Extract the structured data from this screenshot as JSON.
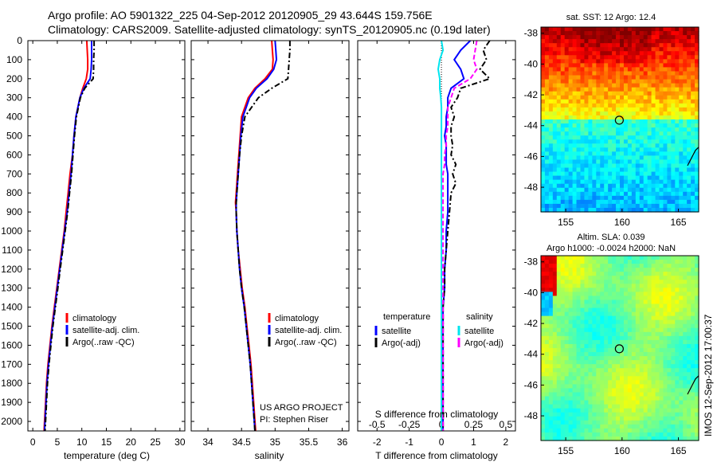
{
  "header": {
    "line1": "Argo profile: AO 5901322_225 04-Sep-2012 20120905_29 43.644S 159.756E",
    "line2": "Climatology: CARS2009. Satellite-adjusted climatology: synTS_20120905.nc (0.19d later)"
  },
  "side_label": "IMOS 12-Sep-2012 17:00:37",
  "colors": {
    "climatology": "#ff0000",
    "satellite": "#0000ff",
    "argo": "#000000",
    "sal_satellite": "#00e5ee",
    "sal_argo": "#ff00ff",
    "float_marker": "#000000"
  },
  "chart_data": [
    {
      "type": "line",
      "panel": "temperature",
      "xlabel": "temperature (deg C)",
      "ylabel": "",
      "xlim": [
        -1,
        31
      ],
      "ylim": [
        2050,
        0
      ],
      "xticks": [
        0,
        5,
        10,
        15,
        20,
        25,
        30
      ],
      "yticks": [
        0,
        100,
        200,
        300,
        400,
        500,
        600,
        700,
        800,
        900,
        1000,
        1100,
        1200,
        1300,
        1400,
        1500,
        1600,
        1700,
        1800,
        1900,
        2000
      ],
      "y": [
        0,
        50,
        100,
        150,
        200,
        250,
        300,
        400,
        500,
        600,
        700,
        800,
        900,
        1000,
        1100,
        1200,
        1300,
        1400,
        1500,
        1600,
        1700,
        1800,
        1900,
        2000,
        2050
      ],
      "series": [
        {
          "name": "climatology",
          "style": "solid",
          "color": "#ff0000",
          "values": [
            11.0,
            11.1,
            11.2,
            11.2,
            10.9,
            10.2,
            9.6,
            8.8,
            8.4,
            8.1,
            7.6,
            7.2,
            6.8,
            6.4,
            5.9,
            5.4,
            4.9,
            4.4,
            3.9,
            3.5,
            3.1,
            2.8,
            2.6,
            2.4,
            2.3
          ]
        },
        {
          "name": "satellite-adj. clim.",
          "style": "solid",
          "color": "#0000ff",
          "values": [
            12.0,
            12.0,
            12.0,
            11.9,
            11.7,
            10.4,
            9.6,
            8.8,
            8.4,
            8.1,
            7.8,
            7.4,
            7.0,
            6.5,
            6.0,
            5.5,
            5.0,
            4.5,
            4.0,
            3.6,
            3.2,
            2.9,
            2.7,
            2.5,
            2.4
          ]
        },
        {
          "name": "Argo(..raw -QC)",
          "style": "dashdot",
          "color": "#000000",
          "values": [
            12.5,
            12.5,
            12.4,
            12.4,
            12.3,
            10.6,
            9.7,
            8.9,
            8.5,
            8.2,
            7.9,
            7.5,
            7.1,
            6.6,
            6.1,
            5.6,
            5.1,
            4.6,
            4.1,
            3.7,
            3.3,
            3.0,
            2.8,
            2.6,
            2.5
          ]
        }
      ],
      "legend": {
        "position": "lower-right",
        "entries": [
          "climatology",
          "satellite-adj. clim.",
          "Argo(..raw -QC)"
        ]
      }
    },
    {
      "type": "line",
      "panel": "salinity",
      "xlabel": "salinity",
      "xlim": [
        33.75,
        36.1
      ],
      "ylim": [
        2050,
        0
      ],
      "xticks": [
        34,
        34.5,
        35,
        35.5,
        36
      ],
      "xtick_labels": [
        "34",
        "34.5",
        "35",
        "35.5",
        "36"
      ],
      "y": [
        0,
        50,
        100,
        150,
        200,
        250,
        300,
        400,
        500,
        600,
        700,
        800,
        850,
        900,
        1000,
        1100,
        1200,
        1300,
        1400,
        1500,
        1600,
        1700,
        1800,
        1900,
        2000,
        2050
      ],
      "series": [
        {
          "name": "climatology",
          "style": "solid",
          "color": "#ff0000",
          "values": [
            34.95,
            34.96,
            34.97,
            34.96,
            34.85,
            34.7,
            34.6,
            34.5,
            34.48,
            34.46,
            34.44,
            34.42,
            34.41,
            34.42,
            34.43,
            34.45,
            34.48,
            34.51,
            34.55,
            34.58,
            34.61,
            34.64,
            34.66,
            34.68,
            34.7,
            34.71
          ]
        },
        {
          "name": "satellite-adj. clim.",
          "style": "solid",
          "color": "#0000ff",
          "values": [
            35.0,
            35.01,
            35.02,
            34.98,
            34.88,
            34.72,
            34.62,
            34.52,
            34.49,
            34.47,
            34.45,
            34.43,
            34.42,
            34.42,
            34.43,
            34.45,
            34.47,
            34.5,
            34.54,
            34.57,
            34.6,
            34.63,
            34.65,
            34.67,
            34.69,
            34.7
          ]
        },
        {
          "name": "Argo(..raw -QC)",
          "style": "dashdot",
          "color": "#000000",
          "values": [
            35.22,
            35.22,
            35.21,
            35.2,
            35.19,
            34.95,
            34.75,
            34.55,
            34.5,
            34.47,
            34.45,
            34.43,
            34.42,
            34.42,
            34.43,
            34.45,
            34.47,
            34.5,
            34.54,
            34.57,
            34.6,
            34.63,
            34.65,
            34.67,
            34.69,
            34.7
          ]
        }
      ],
      "legend": {
        "position": "lower-right",
        "entries": [
          "climatology",
          "satellite-adj. clim.",
          "Argo(..raw -QC)"
        ]
      },
      "annotation": [
        "US ARGO PROJECT",
        "PI: Stephen Riser"
      ]
    },
    {
      "type": "line",
      "panel": "differences",
      "xlabel": "T difference from climatology",
      "xlabel_top": "S difference from climatology",
      "xlim": [
        -2.6,
        2.3
      ],
      "ylim": [
        2050,
        0
      ],
      "xticks_T": [
        -2,
        -1,
        0,
        1,
        2
      ],
      "xticks_S": [
        "-0.5",
        "-0.25",
        "0",
        "0.25",
        "0.5"
      ],
      "y": [
        0,
        50,
        100,
        150,
        200,
        250,
        300,
        350,
        400,
        450,
        500,
        550,
        600,
        650,
        700,
        750,
        800,
        900,
        1000,
        1100,
        1200,
        1300,
        1400,
        1500,
        1600,
        1700,
        1800,
        1900,
        2000,
        2050
      ],
      "series": [
        {
          "name": "temperature satellite",
          "style": "solid",
          "color": "#0000ff",
          "values": [
            0.9,
            0.6,
            0.4,
            0.6,
            0.7,
            0.3,
            0.2,
            0.2,
            0.15,
            0.15,
            0.1,
            0.15,
            0.15,
            0.15,
            0.2,
            0.2,
            0.2,
            0.2,
            0.15,
            0.15,
            0.1,
            0.1,
            0.05,
            0.05,
            0.05,
            0.05,
            0.05,
            0.05,
            0.05,
            0.05
          ]
        },
        {
          "name": "temperature Argo(-adj)",
          "style": "dashdot",
          "color": "#000000",
          "values": [
            1.5,
            1.3,
            1.4,
            1.2,
            1.5,
            0.6,
            0.5,
            0.3,
            0.4,
            0.3,
            0.3,
            0.35,
            0.3,
            0.45,
            0.35,
            0.45,
            0.3,
            0.25,
            0.2,
            0.15,
            0.1,
            0.1,
            0.05,
            0.05,
            0.05,
            0.05,
            0.05,
            0.05,
            0.05,
            0.05
          ]
        },
        {
          "name": "salinity satellite",
          "style": "solid",
          "color": "#00e5ee",
          "values": [
            0.0,
            0.05,
            -0.05,
            -0.1,
            -0.05,
            -0.05,
            -0.02,
            0.0,
            0.0,
            0.0,
            0.0,
            0.0,
            0.0,
            0.0,
            0.0,
            0.0,
            0.0,
            0.0,
            0.0,
            0.0,
            0.0,
            0.0,
            0.0,
            0.0,
            0.0,
            0.0,
            0.0,
            0.0,
            0.0,
            0.0
          ]
        },
        {
          "name": "salinity Argo(-adj)",
          "style": "dashed",
          "color": "#ff00ff",
          "values": [
            1.1,
            1.05,
            1.0,
            1.1,
            0.9,
            0.4,
            0.3,
            0.2,
            0.2,
            0.2,
            0.15,
            0.15,
            0.1,
            0.1,
            0.05,
            0.05,
            0.05,
            0.05,
            0.05,
            0.05,
            0.05,
            0.05,
            0.05,
            0.05,
            0.05,
            0.05,
            0.05,
            0.05,
            0.05,
            0.05
          ]
        }
      ],
      "legend": {
        "columns": [
          {
            "header": "temperature",
            "entries": [
              {
                "label": "satellite",
                "color": "#0000ff"
              },
              {
                "label": "Argo(-adj)",
                "color": "#000000"
              }
            ]
          },
          {
            "header": "salinity",
            "entries": [
              {
                "label": "satellite",
                "color": "#00e5ee"
              },
              {
                "label": "Argo(-adj)",
                "color": "#ff00ff"
              }
            ]
          }
        ]
      }
    },
    {
      "type": "heatmap",
      "panel": "sst_map",
      "title": "sat. SST: 12 Argo: 12.4",
      "xlim": [
        152.8,
        166.8
      ],
      "ylim": [
        -49.6,
        -37.6
      ],
      "xticks": [
        155,
        160,
        165
      ],
      "yticks": [
        -38,
        -40,
        -42,
        -44,
        -46,
        -48
      ],
      "float_position": {
        "lon": 159.756,
        "lat": -43.644
      }
    },
    {
      "type": "heatmap",
      "panel": "sla_map",
      "title": [
        "Altim. SLA: 0.039",
        "Argo h1000: -0.0024 h2000: NaN"
      ],
      "xlim": [
        152.8,
        166.8
      ],
      "ylim": [
        -49.6,
        -37.6
      ],
      "xticks": [
        155,
        160,
        165
      ],
      "yticks": [
        -38,
        -40,
        -42,
        -44,
        -46,
        -48
      ],
      "float_position": {
        "lon": 159.756,
        "lat": -43.644
      }
    }
  ]
}
